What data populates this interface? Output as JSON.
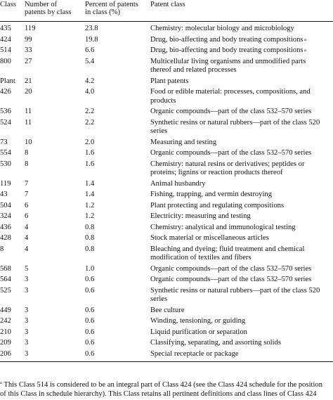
{
  "headers": {
    "class": "Class",
    "number": "Number of\npatents by class",
    "percent": "Percent of patents\nin class (%)",
    "patent_class": "Patent class"
  },
  "rows": [
    {
      "class": "435",
      "number": "119",
      "percent": "23.8",
      "patent_class": "Chemistry: molecular biology and microbiology"
    },
    {
      "class": "424",
      "number": "99",
      "percent": "19.8",
      "patent_class": "Drug, bio-affecting and body treating compositions",
      "sup": "a"
    },
    {
      "class": "514",
      "number": "33",
      "percent": "6.6",
      "patent_class": "Drug, bio-affecting and body treating compositions",
      "sup": "a"
    },
    {
      "class": "800",
      "number": "27",
      "percent": "5.4",
      "patent_class": "Multicellular living organisms and unmodified parts\nthereof and related processes"
    },
    {
      "class": "Plant",
      "number": "21",
      "percent": "4.2",
      "patent_class": "Plant patents"
    },
    {
      "class": "426",
      "number": "20",
      "percent": "4.0",
      "patent_class": "Food or edible material: processes, compositions, and\nproducts"
    },
    {
      "class": "536",
      "number": "11",
      "percent": "2.2",
      "patent_class": "Organic compounds—part of the class 532–570 series"
    },
    {
      "class": "524",
      "number": "11",
      "percent": "2.2",
      "patent_class": "Synthetic resins or natural rubbers—part of the class 520\nseries"
    },
    {
      "class": "73",
      "number": "10",
      "percent": "2.0",
      "patent_class": "Measuring and testing"
    },
    {
      "class": "554",
      "number": "8",
      "percent": "1.6",
      "patent_class": "Organic compounds—part of the class 532–570 series"
    },
    {
      "class": "530",
      "number": "8",
      "percent": "1.6",
      "patent_class": "Chemistry: natural resins or derivatives; peptides or\nproteins; lignins or reaction products thereof"
    },
    {
      "class": "119",
      "number": "7",
      "percent": "1.4",
      "patent_class": "Animal husbandry"
    },
    {
      "class": "43",
      "number": "7",
      "percent": "1.4",
      "patent_class": "Fishing, trapping, and vermin destroying"
    },
    {
      "class": "504",
      "number": "6",
      "percent": "1.2",
      "patent_class": "Plant protecting and regulating compositions"
    },
    {
      "class": "324",
      "number": "6",
      "percent": "1.2",
      "patent_class": "Electricity: measuring and testing"
    },
    {
      "class": "436",
      "number": "4",
      "percent": "0.8",
      "patent_class": "Chemistry: analytical and immunological testing"
    },
    {
      "class": "428",
      "number": "4",
      "percent": "0.8",
      "patent_class": "Stock material or miscellaneous articles"
    },
    {
      "class": "8",
      "number": "4",
      "percent": "0.8",
      "patent_class": "Bleaching and dyeing; fluid treatment and chemical\nmodification of textiles and fibers"
    },
    {
      "class": "568",
      "number": "5",
      "percent": "1.0",
      "patent_class": "Organic compounds—part of the class 532–570 series"
    },
    {
      "class": "564",
      "number": "3",
      "percent": "0.6",
      "patent_class": "Organic compounds—part of the class 532–570 series"
    },
    {
      "class": "525",
      "number": "3",
      "percent": "0.6",
      "patent_class": "Synthetic resins or natural rubbers—part of the class 520\nseries"
    },
    {
      "class": "449",
      "number": "3",
      "percent": "0.6",
      "patent_class": "Bee culture"
    },
    {
      "class": "242",
      "number": "3",
      "percent": "0.6",
      "patent_class": "Winding, tensioning, or guiding"
    },
    {
      "class": "210",
      "number": "3",
      "percent": "0.6",
      "patent_class": "Liquid purification or separation"
    },
    {
      "class": "209",
      "number": "3",
      "percent": "0.6",
      "patent_class": "Classifying, separating, and assorting solids"
    },
    {
      "class": "206",
      "number": "3",
      "percent": "0.6",
      "patent_class": "Special receptacle or package"
    }
  ],
  "footnote": {
    "marker": "a",
    "line1": "  This Class 514 is considered to be an integral part of Class 424 (see the Class 424 schedule for the position",
    "line2": "of this Class in schedule hierarchy). This Class retains all pertinent definitions and class lines of Class 424"
  }
}
